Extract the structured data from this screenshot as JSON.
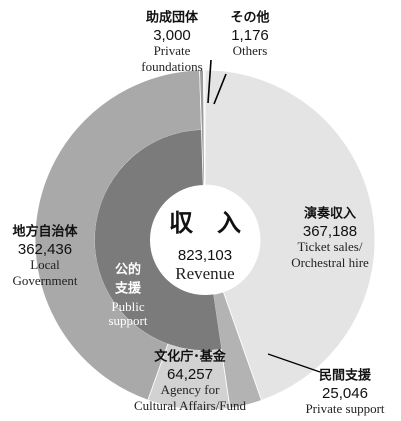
{
  "chart_data": {
    "type": "donut",
    "categories": [
      {
        "label_ja": "演奏収入",
        "label_en": [
          "Ticket sales/",
          "Orchestral hire"
        ]
      },
      {
        "label_ja": "民間支援",
        "label_en": [
          "Private support"
        ]
      },
      {
        "label_ja": "文化庁･基金",
        "label_en": [
          "Agency for",
          "Cultural Affairs/Fund"
        ]
      },
      {
        "label_ja": "地方自治体",
        "label_en": [
          "Local",
          "Government"
        ]
      },
      {
        "label_ja": "助成団体",
        "label_en": [
          "Private",
          "foundations"
        ]
      },
      {
        "label_ja": "その他",
        "label_en": [
          "Others"
        ]
      }
    ],
    "values": [
      367188,
      25046,
      64257,
      362436,
      3000,
      1176
    ],
    "value_labels": [
      "367,188",
      "25,046",
      "64,257",
      "362,436",
      "3,000",
      "1,176"
    ],
    "colors": [
      "#e4e4e4",
      "#b3b3b3",
      "#d2d2d2",
      "#a9a9a9",
      "#9a9a9a",
      "#f0f0f0"
    ],
    "group": {
      "label_ja": [
        "公的",
        "支援"
      ],
      "label_en": [
        "Public",
        "support"
      ],
      "members": [
        2,
        3
      ],
      "color": "#7b7b7b"
    },
    "center": {
      "title": "収　入",
      "value": 823103,
      "value_label": "823,103",
      "label": "Revenue"
    }
  }
}
